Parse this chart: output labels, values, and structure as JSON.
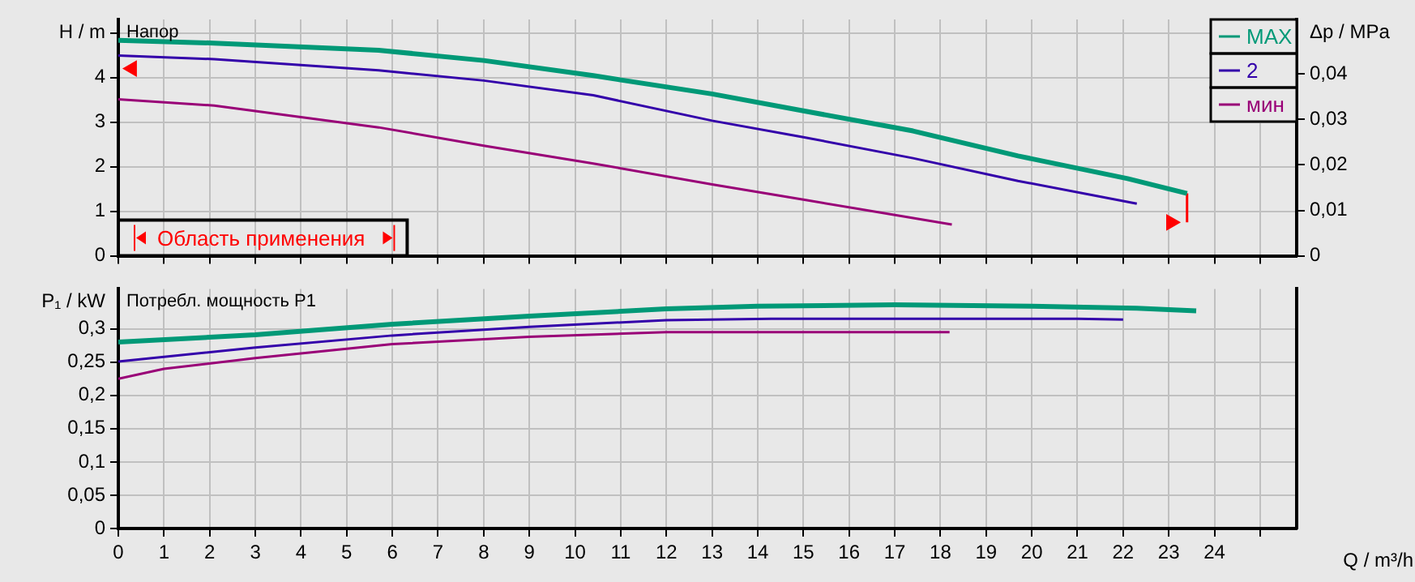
{
  "chart_data": [
    {
      "type": "line",
      "legend": "top right",
      "grid": true,
      "tick_labels": "y",
      "ylabel": "H / m",
      "y2label": "Δp / MPa",
      "annotations": [
        "Напор",
        "Область применения"
      ],
      "xlim": [
        0,
        25.8
      ],
      "xticks": [
        {
          "value": 0,
          "label": null
        },
        {
          "value": 1,
          "label": null
        },
        {
          "value": 2,
          "label": null
        },
        {
          "value": 3,
          "label": null
        },
        {
          "value": 4,
          "label": null
        },
        {
          "value": 5,
          "label": null
        },
        {
          "value": 6,
          "label": null
        },
        {
          "value": 7,
          "label": null
        },
        {
          "value": 8,
          "label": null
        },
        {
          "value": 9,
          "label": null
        },
        {
          "value": 10,
          "label": null
        },
        {
          "value": 11,
          "label": null
        },
        {
          "value": 12,
          "label": null
        },
        {
          "value": 13,
          "label": null
        },
        {
          "value": 14,
          "label": null
        },
        {
          "value": 15,
          "label": null
        },
        {
          "value": 16,
          "label": null
        },
        {
          "value": 17,
          "label": null
        },
        {
          "value": 18,
          "label": null
        },
        {
          "value": 19,
          "label": null
        },
        {
          "value": 20,
          "label": null
        },
        {
          "value": 21,
          "label": null
        },
        {
          "value": 22,
          "label": null
        },
        {
          "value": 23,
          "label": null
        },
        {
          "value": 24,
          "label": null
        },
        {
          "value": 25,
          "label": null
        }
      ],
      "ylim": [
        0,
        5.3
      ],
      "yticks": [
        0,
        1,
        2,
        3,
        4,
        {
          "value": 5,
          "label": null
        }
      ],
      "y2lim": [
        0,
        0.052
      ],
      "y2ticks": [
        0,
        {
          "value": 0.01,
          "label": "0,01"
        },
        {
          "value": 0.02,
          "label": "0,02"
        },
        {
          "value": 0.03,
          "label": "0,03"
        },
        {
          "value": 0.04,
          "label": "0,04"
        }
      ],
      "series": [
        {
          "name": "MAX",
          "color": "#009977",
          "x": [
            0,
            2.1,
            5.7,
            8,
            10.4,
            13,
            15,
            17.4,
            19.7,
            22.1,
            23.4
          ],
          "values": [
            4.83,
            4.77,
            4.61,
            4.38,
            4.04,
            3.63,
            3.25,
            2.8,
            2.24,
            1.73,
            1.4
          ]
        },
        {
          "name": "2",
          "color": "#3300aa",
          "x": [
            0,
            2.1,
            5.7,
            8,
            10.4,
            13,
            15,
            17.4,
            19.7,
            22.3
          ],
          "values": [
            4.49,
            4.41,
            4.16,
            3.93,
            3.6,
            3.03,
            2.66,
            2.19,
            1.68,
            1.17
          ]
        },
        {
          "name": "мин",
          "color": "#990077",
          "x": [
            0,
            2.1,
            5.7,
            8,
            10.4,
            13,
            15,
            18.25
          ],
          "values": [
            3.51,
            3.37,
            2.88,
            2.47,
            2.07,
            1.6,
            1.26,
            0.7
          ]
        },
        {
          "type": "scatter",
          "marker": "triangle",
          "color": "#ff0000",
          "x": [
            0.3,
            23.05
          ],
          "values": [
            4.2,
            0.75
          ]
        },
        {
          "type": "line",
          "color": "#ff0000",
          "x": [
            23.4,
            23.4
          ],
          "values": [
            0.75,
            1.4
          ]
        }
      ]
    },
    {
      "type": "line",
      "grid": true,
      "ylabel": "P₁ / kW",
      "xlabel": "Q / m³/h",
      "annotations": [
        "Потребл. мощность P1"
      ],
      "xlim": [
        0,
        25.8
      ],
      "xticks": [
        0,
        1,
        2,
        3,
        4,
        5,
        6,
        7,
        8,
        9,
        10,
        11,
        12,
        13,
        14,
        15,
        16,
        17,
        18,
        19,
        20,
        21,
        22,
        23,
        24,
        {
          "value": 25,
          "label": null
        }
      ],
      "ylim": [
        0,
        0.36
      ],
      "yticks": [
        0,
        {
          "value": 0.05,
          "label": "0,05"
        },
        {
          "value": 0.1,
          "label": "0,1"
        },
        {
          "value": 0.15,
          "label": "0,15"
        },
        {
          "value": 0.2,
          "label": "0,2"
        },
        {
          "value": 0.25,
          "label": "0,25"
        },
        {
          "value": 0.3,
          "label": "0,3"
        }
      ],
      "series": [
        {
          "color": "#009977",
          "x": [
            0,
            3,
            6,
            9,
            12,
            14,
            17,
            20,
            22.3,
            23.6
          ],
          "values": [
            0.28,
            0.291,
            0.307,
            0.319,
            0.33,
            0.334,
            0.336,
            0.334,
            0.331,
            0.327
          ]
        },
        {
          "color": "#3300aa",
          "x": [
            0,
            3,
            6,
            9,
            12,
            14.3,
            21,
            22
          ],
          "values": [
            0.251,
            0.272,
            0.29,
            0.303,
            0.313,
            0.315,
            0.315,
            0.314
          ]
        },
        {
          "color": "#990077",
          "x": [
            0,
            1,
            3,
            6,
            9,
            12,
            18.2
          ],
          "values": [
            0.225,
            0.24,
            0.256,
            0.277,
            0.288,
            0.295,
            0.295
          ]
        }
      ]
    }
  ]
}
